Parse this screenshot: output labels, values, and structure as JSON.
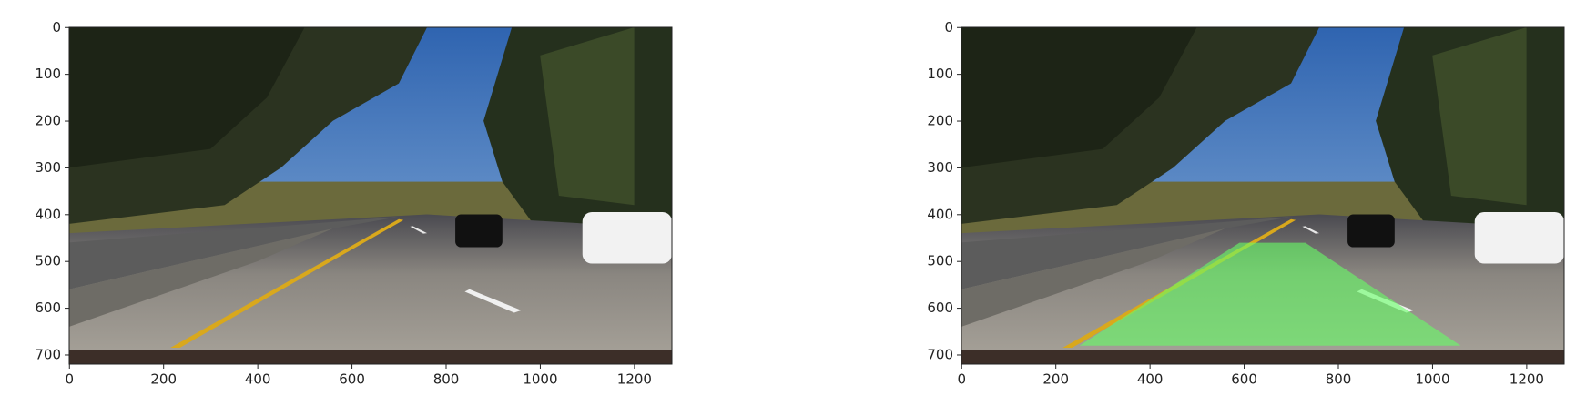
{
  "chart_data": [
    {
      "type": "image",
      "xlim": [
        -0.5,
        1279.5
      ],
      "ylim": [
        719.5,
        -0.5
      ],
      "xticks": [
        0,
        200,
        400,
        600,
        800,
        1000,
        1200
      ],
      "yticks": [
        0,
        100,
        200,
        300,
        400,
        500,
        600,
        700
      ]
    },
    {
      "type": "image",
      "xlim": [
        -0.5,
        1279.5
      ],
      "ylim": [
        719.5,
        -0.5
      ],
      "xticks": [
        0,
        200,
        400,
        600,
        800,
        1000,
        1200
      ],
      "yticks": [
        0,
        100,
        200,
        300,
        400,
        500,
        600,
        700
      ],
      "overlay_color": "#66ff66"
    }
  ]
}
